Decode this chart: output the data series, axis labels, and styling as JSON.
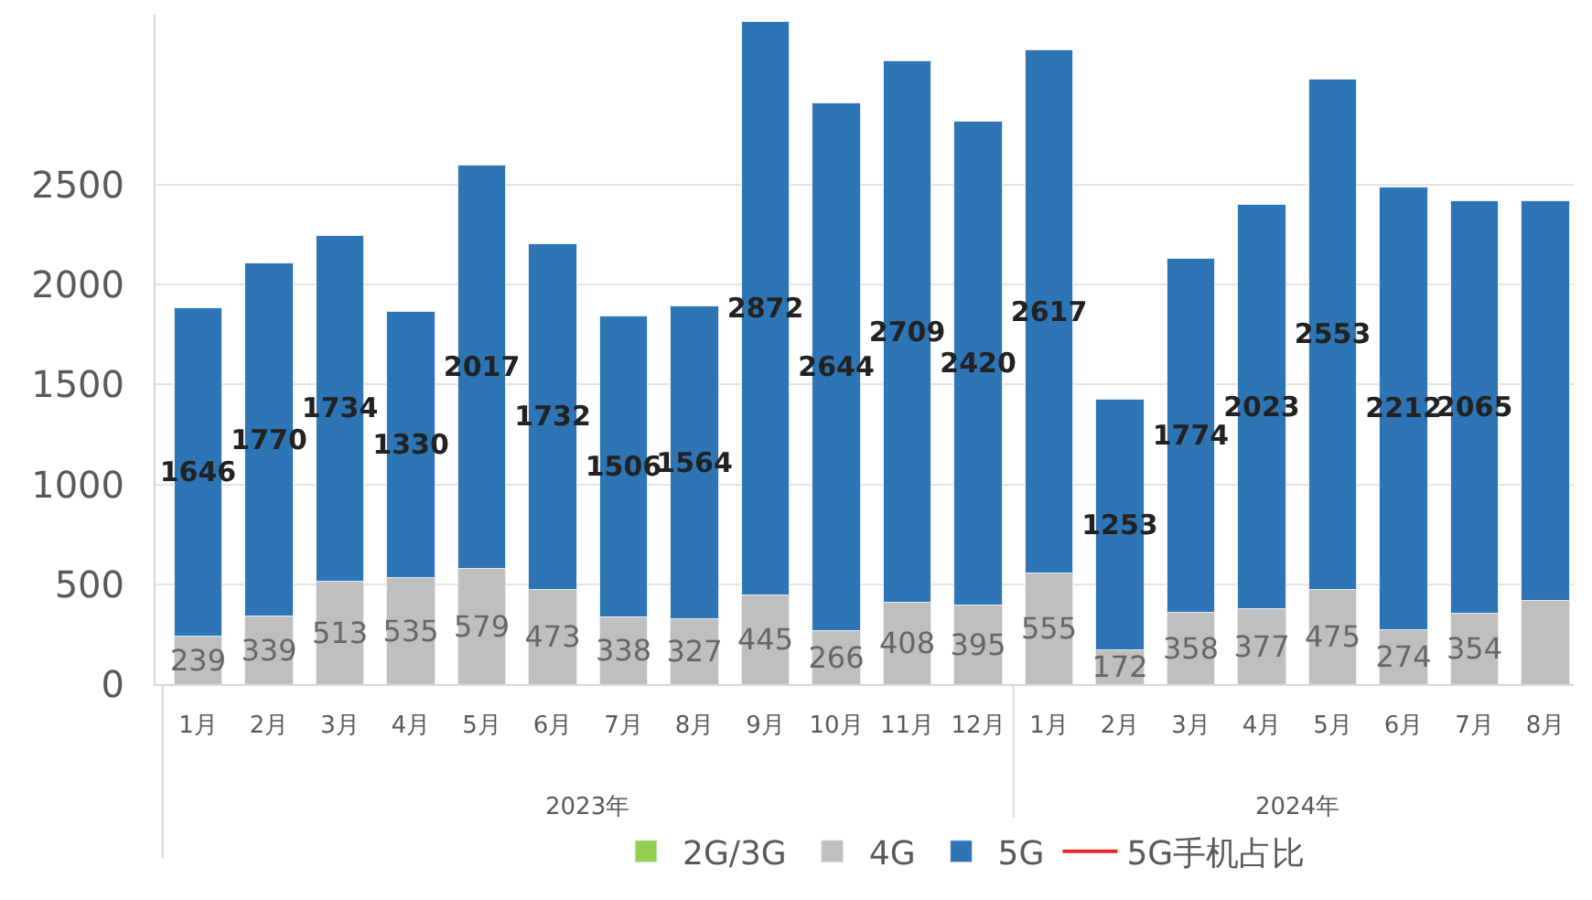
{
  "chart_data": {
    "type": "bar",
    "stacked": true,
    "categories": [
      "1月",
      "2月",
      "3月",
      "4月",
      "5月",
      "6月",
      "7月",
      "8月",
      "9月",
      "10月",
      "11月",
      "12月",
      "1月",
      "2月",
      "3月",
      "4月",
      "5月",
      "6月",
      "7月",
      "8月"
    ],
    "series": [
      {
        "name": "2G/3G",
        "color": "#92d050",
        "values": [
          null,
          null,
          null,
          null,
          null,
          null,
          null,
          null,
          null,
          null,
          null,
          null,
          null,
          null,
          null,
          null,
          null,
          null,
          null,
          null
        ]
      },
      {
        "name": "4G",
        "color": "#bfbfbf",
        "values": [
          239,
          339,
          513,
          535,
          579,
          473,
          338,
          327,
          445,
          266,
          408,
          395,
          555,
          172,
          358,
          377,
          475,
          274,
          354,
          420
        ],
        "value_labels": [
          "239",
          "339",
          "513",
          "535",
          "579",
          "473",
          "338",
          "327",
          "445",
          "266",
          "408",
          "395",
          "555",
          "172",
          "358",
          "377",
          "475",
          "274",
          "354",
          null
        ]
      },
      {
        "name": "5G",
        "color": "#2e75b6",
        "values": [
          1646,
          1770,
          1734,
          1330,
          2017,
          1732,
          1506,
          1564,
          2872,
          2644,
          2709,
          2420,
          2617,
          1253,
          1774,
          2023,
          2553,
          2212,
          2065,
          2000
        ],
        "value_labels": [
          "1646",
          "1770",
          "1734",
          "1330",
          "2017",
          "1732",
          "1506",
          "1564",
          "2872",
          "2644",
          "2709",
          "2420",
          "2617",
          "1253",
          "1774",
          "2023",
          "2553",
          "2212",
          "2065",
          null
        ]
      },
      {
        "name": "5G手机占比",
        "type": "line",
        "color": "#e32b2b",
        "values": [
          null,
          null,
          null,
          null,
          null,
          null,
          null,
          null,
          null,
          null,
          null,
          null,
          null,
          null,
          null,
          null,
          null,
          null,
          null,
          null
        ]
      }
    ],
    "annotations": [
      "2023年",
      "2024年"
    ],
    "ylim": [
      0,
      3350
    ],
    "yticks": [
      0,
      500,
      1000,
      1500,
      2000,
      2500
    ],
    "grid": "y",
    "legend": "bottom"
  }
}
